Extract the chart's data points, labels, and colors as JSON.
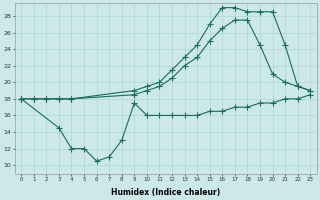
{
  "xlabel": "Humidex (Indice chaleur)",
  "bg_color": "#cce8e8",
  "line_color": "#1a6b60",
  "grid_color": "#afd4d4",
  "xlim": [
    -0.5,
    23.5
  ],
  "ylim": [
    9.0,
    29.5
  ],
  "yticks": [
    10,
    12,
    14,
    16,
    18,
    20,
    22,
    24,
    26,
    28
  ],
  "xticks": [
    0,
    1,
    2,
    3,
    4,
    5,
    6,
    7,
    8,
    9,
    10,
    11,
    12,
    13,
    14,
    15,
    16,
    17,
    18,
    19,
    20,
    21,
    22,
    23
  ],
  "line1_x": [
    0,
    1,
    2,
    3,
    4,
    9,
    10,
    11,
    12,
    13,
    14,
    15,
    16,
    17,
    18,
    19,
    20,
    21,
    22,
    23
  ],
  "line1_y": [
    18,
    18,
    18,
    18,
    18,
    19,
    19.5,
    20,
    21.5,
    23,
    24.5,
    27,
    29,
    29,
    28.5,
    28.5,
    28.5,
    24.5,
    19.5,
    19
  ],
  "line2_x": [
    0,
    1,
    2,
    3,
    4,
    9,
    10,
    11,
    12,
    13,
    14,
    15,
    16,
    17,
    18,
    19,
    20,
    21,
    22,
    23
  ],
  "line2_y": [
    18,
    18,
    18,
    18,
    18,
    18.5,
    19,
    19.5,
    20.5,
    22,
    23,
    25,
    26.5,
    27.5,
    27.5,
    24.5,
    21,
    20,
    19.5,
    19
  ],
  "line3_x": [
    0,
    3,
    4,
    5,
    6,
    7,
    8,
    9,
    10,
    11,
    12,
    13,
    14,
    15,
    16,
    17,
    18,
    19,
    20,
    21,
    22,
    23
  ],
  "line3_y": [
    18,
    14.5,
    12,
    12,
    10.5,
    11,
    13,
    17.5,
    16,
    16,
    16,
    16,
    16,
    16.5,
    16.5,
    17,
    17,
    17.5,
    17.5,
    18,
    18,
    18.5
  ]
}
